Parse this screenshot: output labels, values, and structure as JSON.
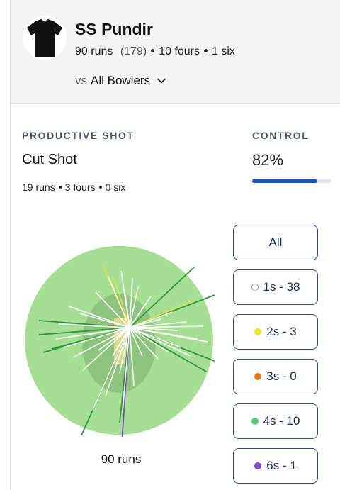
{
  "player": {
    "name": "SS Pundir",
    "runs": "90 runs",
    "balls": "(179)",
    "fours": "10 fours",
    "sixes": "1 six",
    "avatar_icon": "jersey-icon"
  },
  "opponent": {
    "prefix": "vs",
    "value": "All Bowlers"
  },
  "productive_shot": {
    "label": "PRODUCTIVE SHOT",
    "name": "Cut Shot",
    "runs": "19 runs",
    "fours": "3 fours",
    "sixes": "0 six"
  },
  "control": {
    "label": "CONTROL",
    "value": "82%",
    "fraction": 0.82,
    "bar_color": "#1555c0"
  },
  "wagon_wheel": {
    "total_label": "90 runs",
    "field_color": "#a6de94",
    "inner_color": "#8fc47f",
    "pitch_color": "#e6df8f",
    "colors": {
      "1s": "#ffffff",
      "2s": "#e4e23a",
      "4s": "#2b9a3b",
      "6s": "#7a4fc2"
    }
  },
  "filters": [
    {
      "label": "All",
      "dot": null
    },
    {
      "label": "1s - 38",
      "dot": "#ffffff"
    },
    {
      "label": "2s - 3",
      "dot": "#f0e030"
    },
    {
      "label": "3s - 0",
      "dot": "#e07c1b"
    },
    {
      "label": "4s - 10",
      "dot": "#57c97a"
    },
    {
      "label": "6s - 1",
      "dot": "#7a4fc2"
    }
  ]
}
